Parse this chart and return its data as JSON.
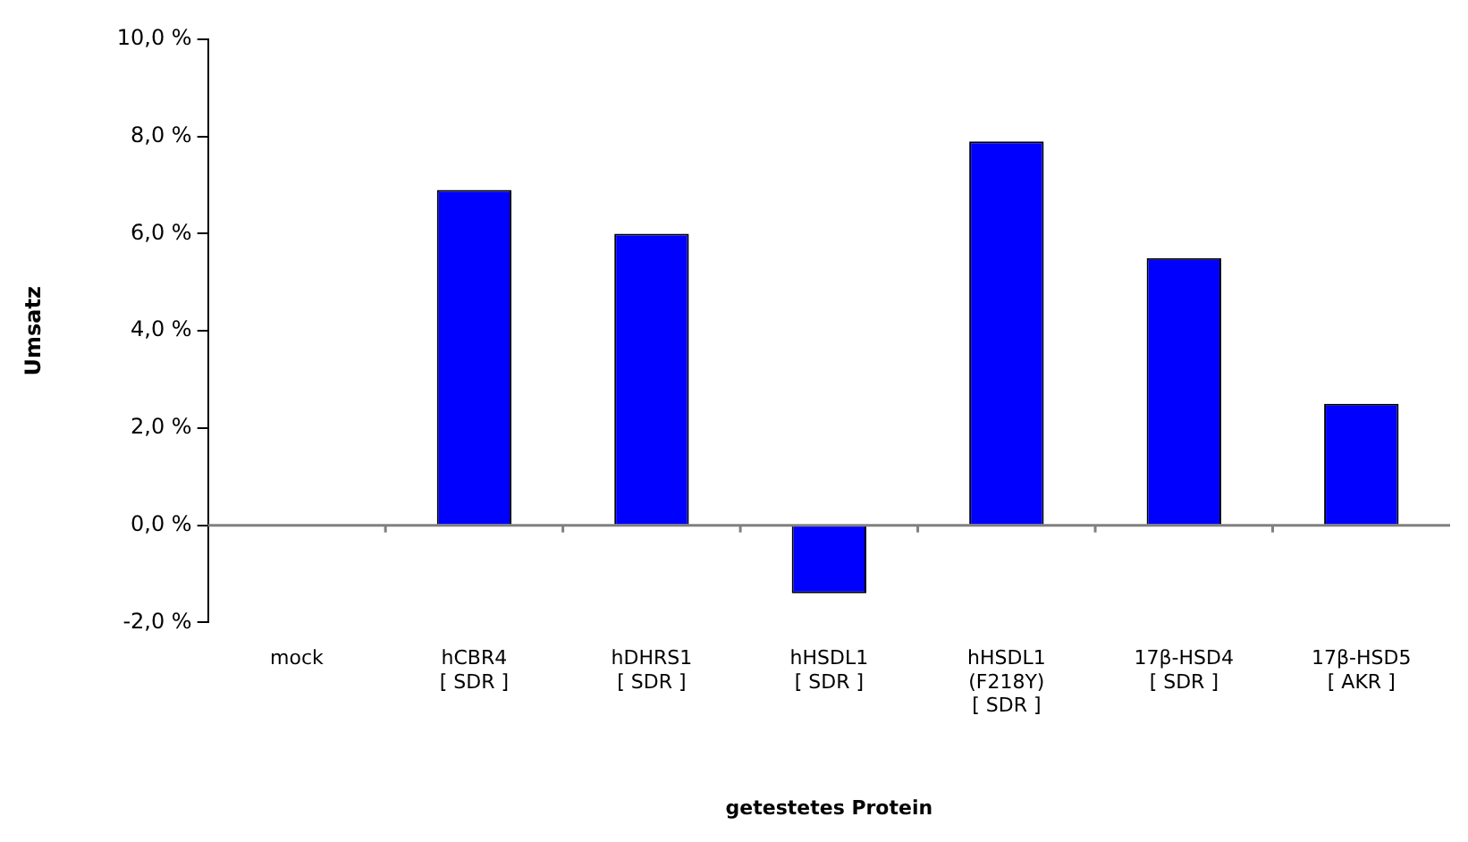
{
  "chart_data": {
    "type": "bar",
    "xlabel": "getestetes Protein",
    "ylabel": "Umsatz",
    "categories": [
      "mock",
      "hCBR4\n[ SDR ]",
      "hDHRS1\n[ SDR ]",
      "hHSDL1\n[ SDR ]",
      "hHSDL1\n(F218Y)\n[ SDR ]",
      "17β-HSD4\n[ SDR ]",
      "17β-HSD5\n[ AKR ]"
    ],
    "values": [
      0,
      6.9,
      6.0,
      -1.4,
      7.9,
      5.5,
      2.5
    ],
    "color": "#0000ff",
    "ylim": [
      -2,
      10
    ],
    "yticks": [
      {
        "value": -2,
        "label": "-2,0 %"
      },
      {
        "value": 0,
        "label": "0,0 %"
      },
      {
        "value": 2,
        "label": "2,0 %"
      },
      {
        "value": 4,
        "label": "4,0 %"
      },
      {
        "value": 6,
        "label": "6,0 %"
      },
      {
        "value": 8,
        "label": "8,0 %"
      },
      {
        "value": 10,
        "label": "10,0 %"
      }
    ],
    "ref_lines": [
      {
        "axis": "y",
        "value": 0,
        "color": "#808080"
      }
    ],
    "legend": false
  }
}
